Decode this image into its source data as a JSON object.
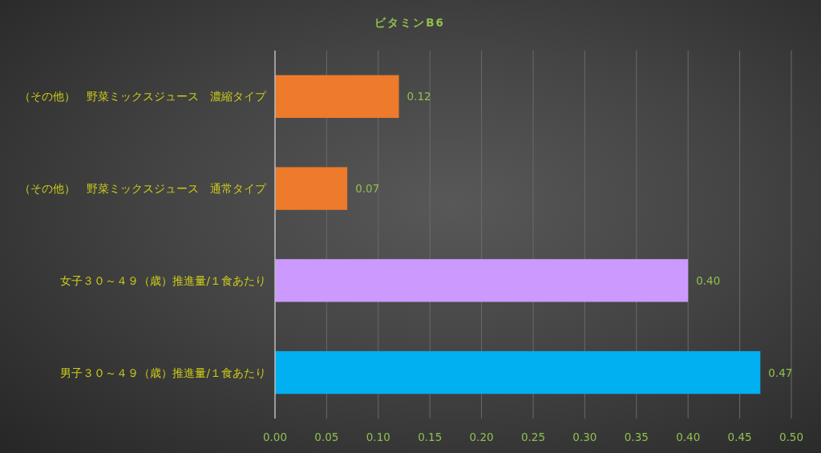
{
  "chart_data": {
    "type": "bar",
    "orientation": "horizontal",
    "title": "ビタミンB6",
    "categories": [
      "（その他）　野菜ミックスジュース　濃縮タイプ",
      "（その他）　野菜ミックスジュース　通常タイプ",
      "女子３０～４９（歳）推進量/１食あたり",
      "男子３０～４９（歳）推進量/１食あたり"
    ],
    "values": [
      0.12,
      0.07,
      0.4,
      0.47
    ],
    "colors": [
      "#ee7a2b",
      "#ee7a2b",
      "#cc99ff",
      "#00b0f0"
    ],
    "value_labels": [
      "0.12",
      "0.07",
      "0.40",
      "0.47"
    ],
    "xlim": [
      0,
      0.5
    ],
    "xticks": [
      {
        "value": 0,
        "label": "0.00"
      },
      {
        "value": 0.05,
        "label": "0.05"
      },
      {
        "value": 0.1,
        "label": "0.10"
      },
      {
        "value": 0.15,
        "label": "0.15"
      },
      {
        "value": 0.2,
        "label": "0.20"
      },
      {
        "value": 0.25,
        "label": "0.25"
      },
      {
        "value": 0.3,
        "label": "0.30"
      },
      {
        "value": 0.35,
        "label": "0.35"
      },
      {
        "value": 0.4,
        "label": "0.40"
      },
      {
        "value": 0.45,
        "label": "0.45"
      },
      {
        "value": 0.5,
        "label": "0.50"
      }
    ],
    "grid": "x"
  }
}
